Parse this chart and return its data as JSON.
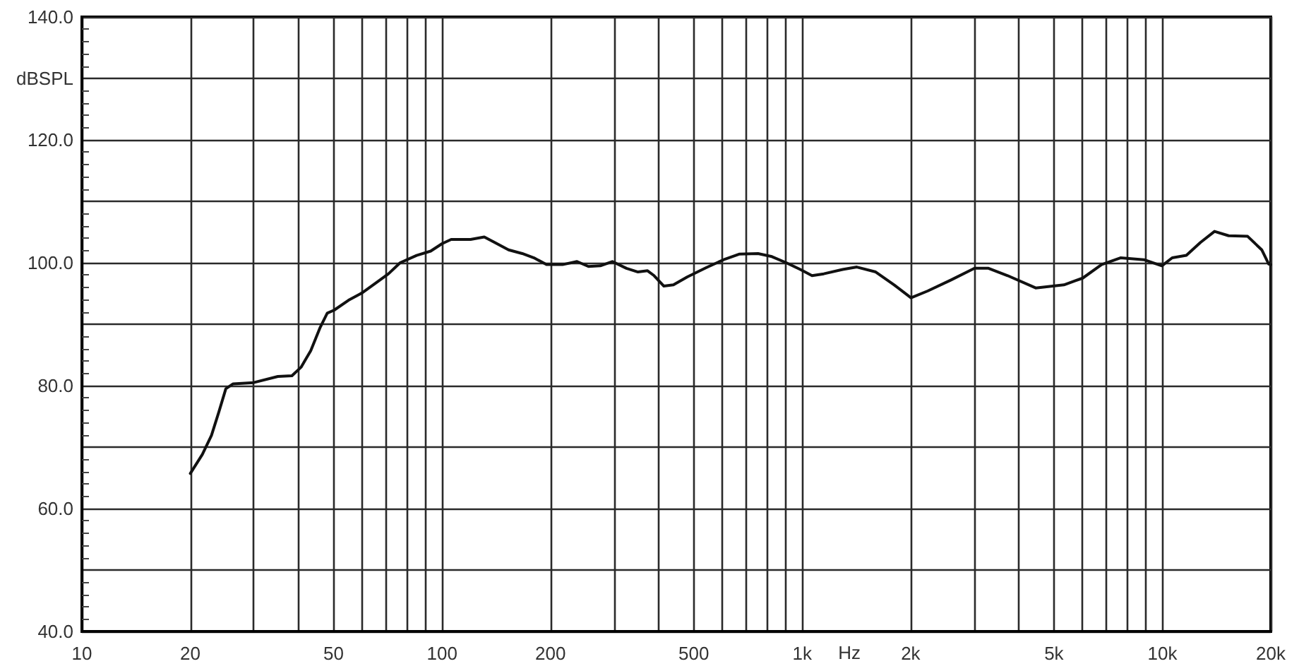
{
  "chart_data": {
    "type": "line",
    "xlabel": "Hz",
    "ylabel": "dBSPL",
    "x": [
      20,
      21.6,
      22.9,
      24,
      25.1,
      26.3,
      30,
      35,
      38.3,
      40.6,
      43.2,
      45.9,
      48,
      50.2,
      55,
      60,
      65.8,
      71,
      76.5,
      85,
      93,
      100,
      106,
      120,
      131,
      140,
      153,
      167,
      180,
      195,
      216,
      237,
      255,
      275,
      297,
      325,
      350,
      372,
      388,
      413,
      439,
      480,
      541,
      611,
      668,
      754,
      824,
      903,
      988,
      1065,
      1148,
      1295,
      1418,
      1600,
      1800,
      2005,
      2230,
      2590,
      3010,
      3290,
      3720,
      4450,
      5330,
      6010,
      6780,
      7650,
      8890,
      9970,
      10650,
      11660,
      12760,
      13960,
      15280,
      17250,
      18880,
      19730,
      20000
    ],
    "values": [
      65.7,
      68.8,
      71.9,
      75.7,
      79.5,
      80.3,
      80.5,
      81.5,
      81.6,
      83.0,
      85.7,
      89.5,
      91.8,
      92.3,
      93.9,
      95.1,
      96.8,
      98.2,
      100.0,
      101.2,
      101.9,
      103.1,
      103.8,
      103.8,
      104.2,
      103.3,
      102.1,
      101.5,
      100.8,
      99.7,
      99.7,
      100.2,
      99.4,
      99.5,
      100.2,
      99.1,
      98.5,
      98.7,
      97.9,
      96.2,
      96.4,
      97.7,
      99.2,
      100.6,
      101.4,
      101.5,
      101.0,
      100.0,
      98.9,
      97.9,
      98.2,
      98.9,
      99.3,
      98.5,
      96.4,
      94.3,
      95.4,
      97.2,
      99.1,
      99.1,
      97.9,
      95.9,
      96.4,
      97.5,
      99.7,
      100.8,
      100.5,
      99.5,
      100.8,
      101.2,
      103.3,
      105.1,
      104.4,
      104.3,
      102.1,
      99.8,
      99.7
    ],
    "color": "#111111",
    "log": "x",
    "xlim": [
      10,
      20000
    ],
    "ylim": [
      40,
      140
    ],
    "xticks": [
      10,
      20,
      {
        "value": 30,
        "label": null
      },
      {
        "value": 40,
        "label": null
      },
      50,
      {
        "value": 60,
        "label": null
      },
      {
        "value": 70,
        "label": null
      },
      {
        "value": 80,
        "label": null
      },
      {
        "value": 90,
        "label": null
      },
      100,
      200,
      {
        "value": 300,
        "label": null
      },
      {
        "value": 400,
        "label": null
      },
      500,
      {
        "value": 600,
        "label": null
      },
      {
        "value": 700,
        "label": null
      },
      {
        "value": 800,
        "label": null
      },
      {
        "value": 900,
        "label": null
      },
      {
        "value": 1000,
        "label": "1k"
      },
      {
        "value": 2000,
        "label": "2k"
      },
      {
        "value": 3000,
        "label": null
      },
      {
        "value": 4000,
        "label": null
      },
      {
        "value": 5000,
        "label": "5k"
      },
      {
        "value": 6000,
        "label": null
      },
      {
        "value": 7000,
        "label": null
      },
      {
        "value": 8000,
        "label": null
      },
      {
        "value": 9000,
        "label": null
      },
      {
        "value": 10000,
        "label": "10k"
      },
      {
        "value": 20000,
        "label": "20k"
      }
    ],
    "yticks": [
      {
        "value": 40,
        "label": "40.0"
      },
      {
        "value": 50,
        "label": null
      },
      {
        "value": 60,
        "label": "60.0"
      },
      {
        "value": 70,
        "label": null
      },
      {
        "value": 80,
        "label": "80.0"
      },
      {
        "value": 90,
        "label": null
      },
      {
        "value": 100,
        "label": "100.0"
      },
      {
        "value": 110,
        "label": null
      },
      {
        "value": 120,
        "label": "120.0"
      },
      {
        "value": 130,
        "label": null
      },
      {
        "value": 140,
        "label": "140.0"
      }
    ],
    "grid": true,
    "marker": "none",
    "line_style": "solid"
  }
}
